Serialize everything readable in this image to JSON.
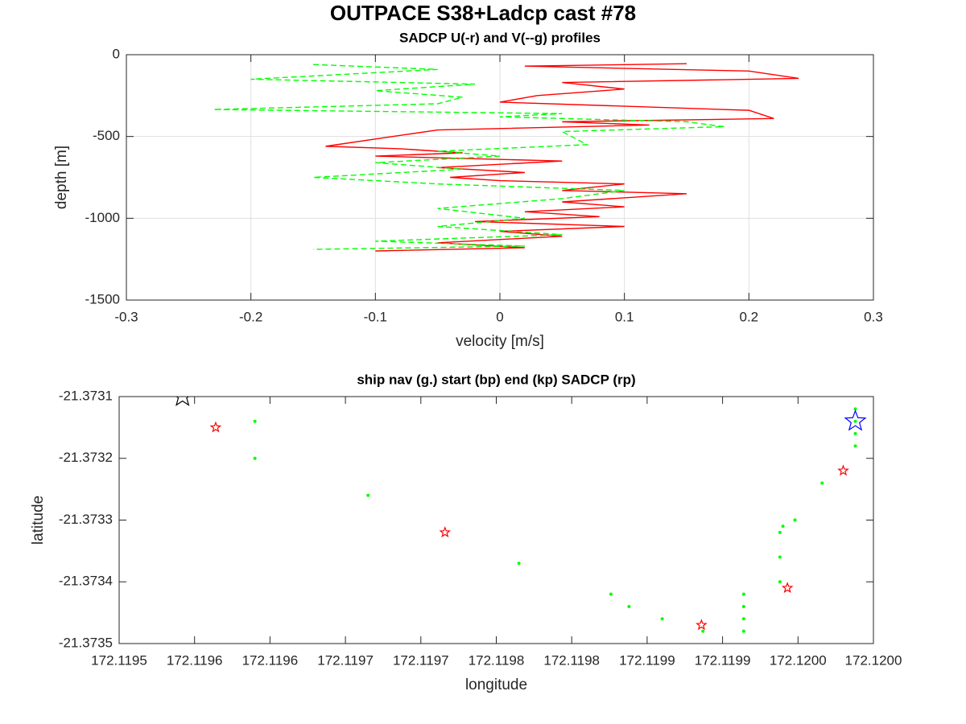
{
  "title": "OUTPACE S38+Ladcp cast #78",
  "chart_data": [
    {
      "type": "line",
      "title": "SADCP U(-r) and V(--g) profiles",
      "xlabel": "velocity [m/s]",
      "ylabel": "depth [m]",
      "xlim": [
        -0.3,
        0.3
      ],
      "xticks": [
        -0.3,
        -0.2,
        -0.1,
        0,
        0.1,
        0.2,
        0.3
      ],
      "ylim": [
        -1500,
        0
      ],
      "yticks": [
        -1500,
        -1000,
        -500,
        0
      ],
      "grid": true,
      "series": [
        {
          "color": "#ff0000",
          "dash": false,
          "x": [
            0.15,
            0.02,
            0.2,
            0.24,
            0.05,
            0.1,
            0.03,
            0.0,
            0.2,
            0.22,
            0.05,
            0.12,
            -0.05,
            -0.14,
            -0.08,
            -0.03,
            -0.1,
            0.05,
            -0.05,
            0.02,
            -0.04,
            0.0,
            0.1,
            0.05,
            0.15,
            0.05,
            0.1,
            0.02,
            0.08,
            -0.02,
            0.1,
            0.0,
            0.05,
            -0.05,
            0.02,
            -0.1
          ],
          "values": [
            -55,
            -70,
            -100,
            -145,
            -170,
            -210,
            -250,
            -290,
            -340,
            -390,
            -410,
            -430,
            -460,
            -560,
            -575,
            -600,
            -620,
            -650,
            -690,
            -720,
            -750,
            -770,
            -790,
            -830,
            -850,
            -900,
            -930,
            -960,
            -990,
            -1020,
            -1050,
            -1080,
            -1110,
            -1150,
            -1180,
            -1200
          ]
        },
        {
          "color": "#00ff00",
          "dash": true,
          "x": [
            -0.15,
            -0.05,
            -0.2,
            -0.02,
            -0.1,
            -0.03,
            -0.05,
            -0.23,
            0.05,
            0.0,
            0.15,
            0.18,
            0.05,
            0.07,
            -0.05,
            0.0,
            -0.1,
            -0.03,
            -0.15,
            -0.05,
            0.1,
            0.05,
            -0.05,
            0.02,
            -0.05,
            0.05,
            -0.1,
            0.02,
            -0.15
          ],
          "values": [
            -60,
            -90,
            -150,
            -180,
            -220,
            -260,
            -300,
            -335,
            -360,
            -380,
            -410,
            -440,
            -470,
            -550,
            -590,
            -620,
            -660,
            -700,
            -750,
            -790,
            -830,
            -880,
            -940,
            -1000,
            -1050,
            -1100,
            -1140,
            -1170,
            -1190
          ]
        }
      ]
    },
    {
      "type": "scatter",
      "title": "ship nav (g.) start (bp) end (kp) SADCP (rp)",
      "xlabel": "longitude",
      "ylabel": "latitude",
      "xlim": [
        172.1195,
        172.12
      ],
      "xticks": [
        172.1195,
        {
          "value": 172.11955,
          "label": "172.1196"
        },
        172.1196,
        {
          "value": 172.11965,
          "label": "172.1197"
        },
        172.1197,
        {
          "value": 172.11975,
          "label": "172.1198"
        },
        172.1198,
        {
          "value": 172.11985,
          "label": "172.1199"
        },
        172.1199,
        {
          "value": 172.11995,
          "label": "172.1200"
        },
        {
          "value": 172.12,
          "label": "172.1200"
        }
      ],
      "ylim": [
        -21.3735,
        -21.3731
      ],
      "yticks": [
        -21.3735,
        -21.3734,
        -21.3733,
        -21.3732,
        -21.3731
      ],
      "grid": false,
      "series": [
        {
          "color": "#00ff00",
          "marker": "dot",
          "x": [
            172.11959,
            172.11959,
            172.119665,
            172.119765,
            172.119826,
            172.119838,
            172.11986,
            172.119887,
            172.119914,
            172.119914,
            172.119914,
            172.119914,
            172.119938,
            172.11994,
            172.119938,
            172.119938,
            172.119948,
            172.119948,
            172.119966,
            172.119988,
            172.119988,
            172.119988,
            172.119988
          ],
          "values": [
            -21.37314,
            -21.3732,
            -21.37326,
            -21.37337,
            -21.37342,
            -21.37344,
            -21.37346,
            -21.37348,
            -21.37342,
            -21.37344,
            -21.37346,
            -21.37348,
            -21.37332,
            -21.37331,
            -21.37336,
            -21.3734,
            -21.3733,
            -21.3733,
            -21.37324,
            -21.37312,
            -21.37314,
            -21.37316,
            -21.37318
          ]
        },
        {
          "color": "#ff0000",
          "marker": "star",
          "size": 6,
          "x": [
            172.119564,
            172.119716,
            172.119886,
            172.119943,
            172.11998
          ],
          "values": [
            -21.37315,
            -21.37332,
            -21.37347,
            -21.37341,
            -21.37322
          ]
        },
        {
          "color": "#000000",
          "marker": "star",
          "size": 13,
          "x": [
            172.119542
          ],
          "values": [
            -21.3731
          ]
        },
        {
          "color": "#0000ff",
          "marker": "star",
          "size": 13,
          "x": [
            172.119988
          ],
          "values": [
            -21.37314
          ]
        }
      ]
    }
  ]
}
